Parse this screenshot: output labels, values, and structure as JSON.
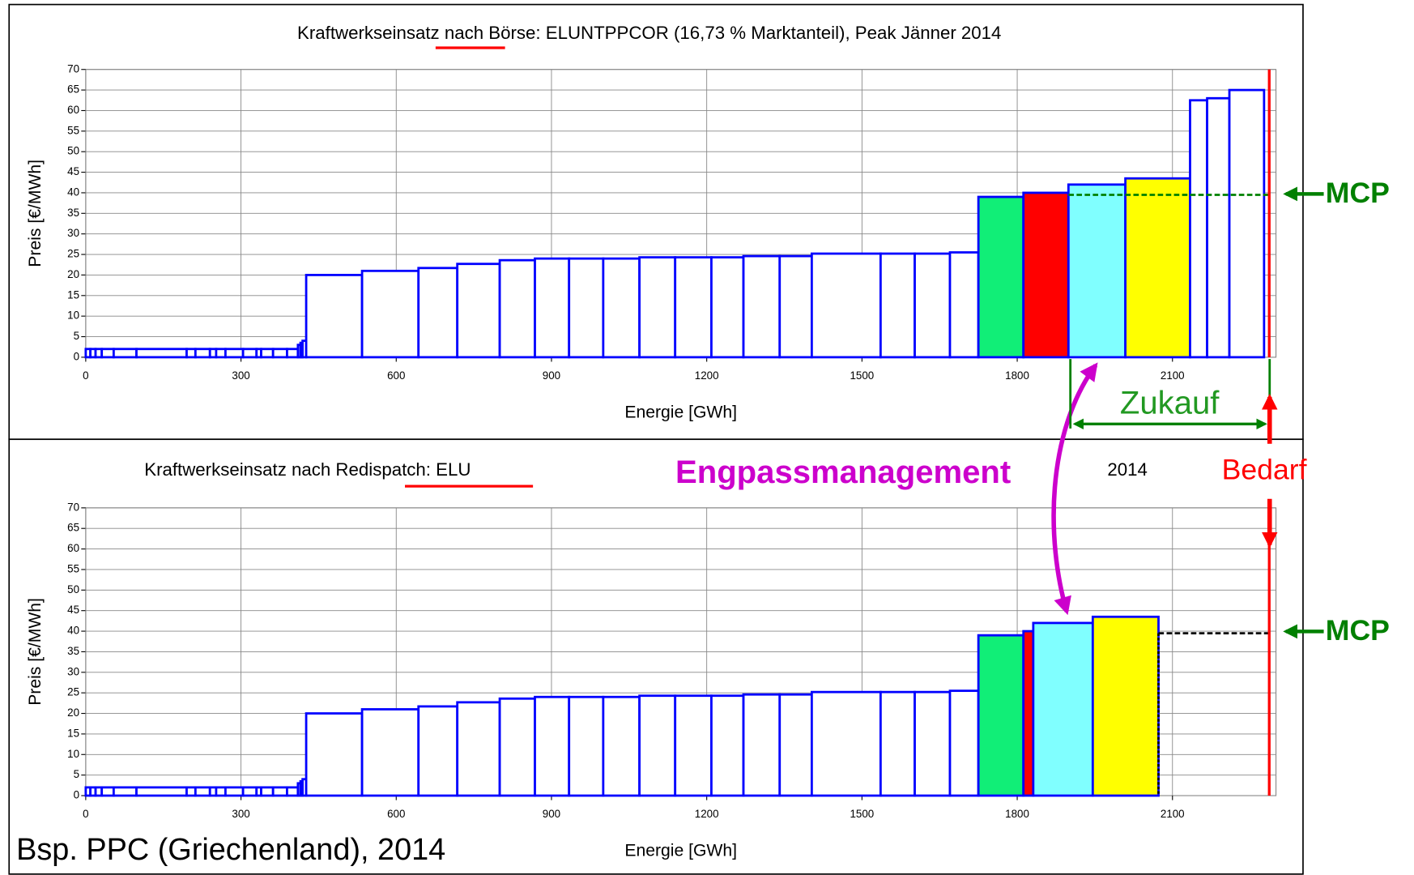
{
  "chart_data": [
    {
      "type": "histogram",
      "title": "Kraftwerkseinsatz nach Börse: ELUNTPPCOR (16,73 % Marktanteil), Peak Jänner 2014",
      "x_label": "Energie [GWh]",
      "y_label": "Preis [€/MWh]",
      "bins": [
        0,
        9,
        19,
        31,
        54,
        98,
        195,
        212,
        240,
        252,
        270,
        304,
        330,
        339,
        362,
        389,
        410,
        415,
        419,
        426,
        534,
        643,
        718,
        800,
        868,
        934,
        1000,
        1070,
        1139,
        1209,
        1271,
        1341,
        1403,
        1536,
        1602,
        1670,
        1725,
        1812,
        1899,
        2009,
        2134,
        2167,
        2210,
        2277
      ],
      "values": [
        2,
        2,
        2,
        2,
        2,
        2,
        2,
        2,
        2,
        2,
        2,
        2,
        2,
        2,
        2,
        2,
        3,
        3.5,
        4,
        20,
        21,
        21.7,
        22.7,
        23.6,
        24,
        24,
        24,
        24.3,
        24.3,
        24.3,
        24.6,
        24.6,
        25.2,
        25.2,
        25.2,
        25.5,
        39,
        40,
        42,
        43.5,
        62.5,
        63,
        65
      ],
      "colors": [
        "#ffffff",
        "#ffffff",
        "#ffffff",
        "#ffffff",
        "#ffffff",
        "#ffffff",
        "#ffffff",
        "#ffffff",
        "#ffffff",
        "#ffffff",
        "#ffffff",
        "#ffffff",
        "#ffffff",
        "#ffffff",
        "#ffffff",
        "#ffffff",
        "#ffffff",
        "#ffffff",
        "#ffffff",
        "#ffffff",
        "#ffffff",
        "#ffffff",
        "#ffffff",
        "#ffffff",
        "#ffffff",
        "#ffffff",
        "#ffffff",
        "#ffffff",
        "#ffffff",
        "#ffffff",
        "#ffffff",
        "#ffffff",
        "#ffffff",
        "#ffffff",
        "#ffffff",
        "#ffffff",
        "#11ee77",
        "#ff0000",
        "#80ffff",
        "#ffff00",
        "#ffffff",
        "#ffffff",
        "#ffffff"
      ],
      "edge_color": "#0000ff",
      "xlim": [
        0,
        2300
      ],
      "ylim": [
        0,
        70
      ],
      "xticks": [
        0,
        300,
        600,
        900,
        1200,
        1500,
        1800,
        2100
      ],
      "yticks": [
        0,
        5,
        10,
        15,
        20,
        25,
        30,
        35,
        40,
        45,
        50,
        55,
        60,
        65,
        70
      ],
      "grid": true,
      "mcp": {
        "value": 39.5,
        "from": 1899,
        "color": "#008000"
      },
      "demand": {
        "value": 2287,
        "color": "#ff0000"
      }
    },
    {
      "type": "histogram",
      "title": "Kraftwerkseinsatz nach Redispatch: ELU",
      "title_tail": "2014",
      "x_label": "Energie [GWh]",
      "y_label": "Preis [€/MWh]",
      "bins": [
        0,
        9,
        19,
        31,
        54,
        98,
        195,
        212,
        240,
        252,
        270,
        304,
        330,
        339,
        362,
        389,
        410,
        415,
        419,
        426,
        534,
        643,
        718,
        800,
        868,
        934,
        1000,
        1070,
        1139,
        1209,
        1271,
        1341,
        1403,
        1536,
        1602,
        1670,
        1725,
        1812,
        1831,
        1946,
        2073
      ],
      "values": [
        2,
        2,
        2,
        2,
        2,
        2,
        2,
        2,
        2,
        2,
        2,
        2,
        2,
        2,
        2,
        2,
        3,
        3.5,
        4,
        20,
        21,
        21.7,
        22.7,
        23.6,
        24,
        24,
        24,
        24.3,
        24.3,
        24.3,
        24.6,
        24.6,
        25.2,
        25.2,
        25.2,
        25.5,
        39,
        40,
        42,
        43.5
      ],
      "colors": [
        "#ffffff",
        "#ffffff",
        "#ffffff",
        "#ffffff",
        "#ffffff",
        "#ffffff",
        "#ffffff",
        "#ffffff",
        "#ffffff",
        "#ffffff",
        "#ffffff",
        "#ffffff",
        "#ffffff",
        "#ffffff",
        "#ffffff",
        "#ffffff",
        "#ffffff",
        "#ffffff",
        "#ffffff",
        "#ffffff",
        "#ffffff",
        "#ffffff",
        "#ffffff",
        "#ffffff",
        "#ffffff",
        "#ffffff",
        "#ffffff",
        "#ffffff",
        "#ffffff",
        "#ffffff",
        "#ffffff",
        "#ffffff",
        "#ffffff",
        "#ffffff",
        "#ffffff",
        "#ffffff",
        "#11ee77",
        "#ff0000",
        "#80ffff",
        "#ffff00"
      ],
      "edge_color": "#0000ff",
      "xlim": [
        0,
        2300
      ],
      "ylim": [
        0,
        70
      ],
      "xticks": [
        0,
        300,
        600,
        900,
        1200,
        1500,
        1800,
        2100
      ],
      "yticks": [
        0,
        5,
        10,
        15,
        20,
        25,
        30,
        35,
        40,
        45,
        50,
        55,
        60,
        65,
        70
      ],
      "grid": true,
      "mcp": {
        "value": 39.5,
        "from": 2073,
        "color": "#000000"
      },
      "demand": {
        "value": 2287,
        "color": "#ff0000"
      }
    }
  ],
  "annotations": {
    "mcp_top": "MCP",
    "mcp_bottom": "MCP",
    "zukauf": "Zukauf",
    "bedarf": "Bedarf",
    "engpass": "Engpassmanagement",
    "example": "Bsp. PPC (Griechenland), 2014"
  }
}
